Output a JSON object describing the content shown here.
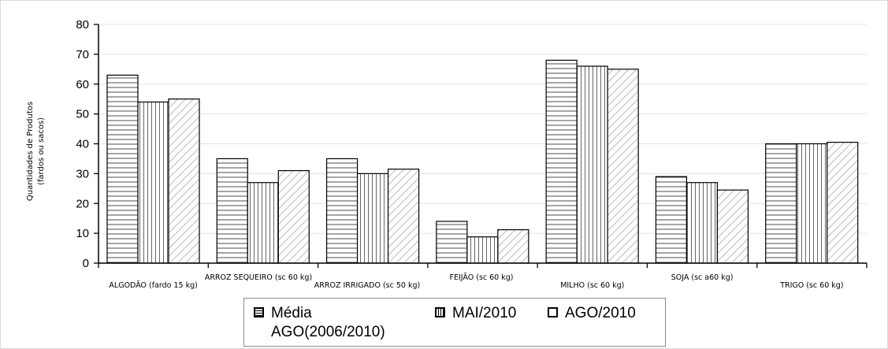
{
  "chart_data": {
    "type": "bar",
    "title": "",
    "xlabel": "",
    "ylabel": "Quantidades de Produtos\n(fardos ou sacos)",
    "ylim": [
      0,
      80
    ],
    "yticks": [
      0,
      10,
      20,
      30,
      40,
      50,
      60,
      70,
      80
    ],
    "grid": true,
    "legend_position": "bottom",
    "categories": [
      "ALGODÃO (fardo 15 kg)",
      "ARROZ SEQUEIRO (sc 60 kg)",
      "ARROZ IRRIGADO (sc 50 kg)",
      "FEIJÃO (sc 60 kg)",
      "MILHO (sc 60 kg)",
      "SOJA (sc a60 kg)",
      "TRIGO (sc 60 kg)"
    ],
    "series": [
      {
        "name": "Média AGO(2006/2010)",
        "pattern": "horizontal",
        "values": [
          63,
          35,
          35,
          14,
          68,
          29,
          40
        ]
      },
      {
        "name": "MAI/2010",
        "pattern": "vertical",
        "values": [
          54,
          27,
          30,
          8.8,
          66,
          27,
          40
        ]
      },
      {
        "name": "AGO/2010",
        "pattern": "diagonal",
        "values": [
          55,
          31,
          31.5,
          11.2,
          65,
          24.5,
          40.5
        ]
      }
    ],
    "colors": {
      "bar_stroke": "#000000",
      "bar_fill": "#ffffff",
      "grid": "#e3e3e3"
    }
  },
  "legend": {
    "items": [
      {
        "label_line1": "Média",
        "label_line2": "AGO(2006/2010)"
      },
      {
        "label_line1": "MAI/2010",
        "label_line2": ""
      },
      {
        "label_line1": "AGO/2010",
        "label_line2": ""
      }
    ]
  }
}
